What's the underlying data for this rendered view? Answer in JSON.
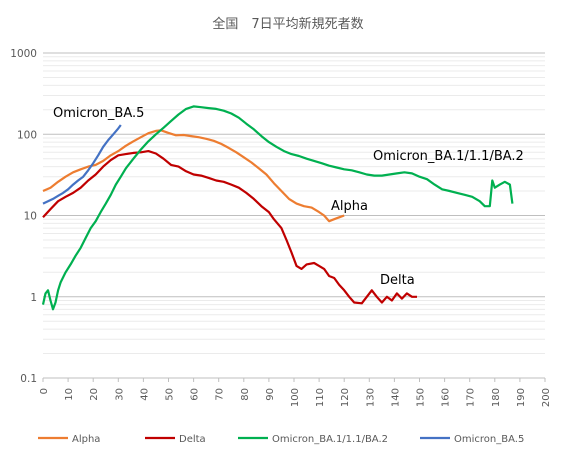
{
  "chart_data": {
    "type": "line",
    "title": "全国　7日平均新規死者数",
    "yscale": "log",
    "ylim": [
      0.1,
      1000
    ],
    "xlim": [
      0,
      200
    ],
    "xticks": [
      "0",
      "10",
      "20",
      "30",
      "40",
      "50",
      "60",
      "70",
      "80",
      "90",
      "100",
      "110",
      "120",
      "130",
      "140",
      "150",
      "160",
      "170",
      "180",
      "190",
      "200"
    ],
    "yticks": [
      "0.1",
      "1",
      "10",
      "100",
      "1000"
    ],
    "grid": true,
    "legend_position": "bottom",
    "series": [
      {
        "name": "Alpha",
        "color": "#ED7D31",
        "label": "Alpha",
        "points": [
          [
            0,
            20
          ],
          [
            3,
            22
          ],
          [
            6,
            26
          ],
          [
            9,
            30
          ],
          [
            12,
            34
          ],
          [
            15,
            37
          ],
          [
            18,
            40
          ],
          [
            21,
            42
          ],
          [
            24,
            47
          ],
          [
            27,
            55
          ],
          [
            30,
            62
          ],
          [
            33,
            72
          ],
          [
            36,
            82
          ],
          [
            39,
            92
          ],
          [
            42,
            103
          ],
          [
            45,
            110
          ],
          [
            47,
            112
          ],
          [
            50,
            104
          ],
          [
            53,
            97
          ],
          [
            56,
            98
          ],
          [
            59,
            95
          ],
          [
            62,
            92
          ],
          [
            65,
            88
          ],
          [
            68,
            83
          ],
          [
            71,
            76
          ],
          [
            74,
            68
          ],
          [
            77,
            60
          ],
          [
            80,
            52
          ],
          [
            83,
            45
          ],
          [
            86,
            38
          ],
          [
            89,
            32
          ],
          [
            92,
            25
          ],
          [
            95,
            20
          ],
          [
            98,
            16
          ],
          [
            101,
            14
          ],
          [
            104,
            13
          ],
          [
            107,
            12.5
          ],
          [
            110,
            11
          ],
          [
            112,
            10
          ],
          [
            114,
            8.5
          ],
          [
            116,
            9
          ],
          [
            118,
            9.5
          ],
          [
            120,
            10
          ]
        ]
      },
      {
        "name": "Delta",
        "color": "#C00000",
        "label": "Delta",
        "points": [
          [
            0,
            9.5
          ],
          [
            3,
            12
          ],
          [
            6,
            15
          ],
          [
            9,
            17
          ],
          [
            12,
            19
          ],
          [
            15,
            22
          ],
          [
            18,
            27
          ],
          [
            21,
            32
          ],
          [
            24,
            40
          ],
          [
            27,
            48
          ],
          [
            30,
            55
          ],
          [
            33,
            57
          ],
          [
            36,
            59
          ],
          [
            39,
            60
          ],
          [
            42,
            62
          ],
          [
            45,
            58
          ],
          [
            48,
            50
          ],
          [
            51,
            42
          ],
          [
            54,
            40
          ],
          [
            57,
            35
          ],
          [
            60,
            32
          ],
          [
            63,
            31
          ],
          [
            66,
            29
          ],
          [
            69,
            27
          ],
          [
            72,
            26
          ],
          [
            75,
            24
          ],
          [
            78,
            22
          ],
          [
            81,
            19
          ],
          [
            84,
            16
          ],
          [
            87,
            13
          ],
          [
            90,
            11
          ],
          [
            92,
            9
          ],
          [
            95,
            7
          ],
          [
            97,
            5
          ],
          [
            99,
            3.5
          ],
          [
            101,
            2.4
          ],
          [
            103,
            2.2
          ],
          [
            105,
            2.5
          ],
          [
            108,
            2.6
          ],
          [
            110,
            2.4
          ],
          [
            112,
            2.2
          ],
          [
            114,
            1.8
          ],
          [
            116,
            1.7
          ],
          [
            118,
            1.4
          ],
          [
            120,
            1.2
          ],
          [
            122,
            1.0
          ],
          [
            124,
            0.85
          ],
          [
            127,
            0.83
          ],
          [
            129,
            1.0
          ],
          [
            131,
            1.2
          ],
          [
            133,
            1.0
          ],
          [
            135,
            0.85
          ],
          [
            137,
            1.0
          ],
          [
            139,
            0.9
          ],
          [
            141,
            1.1
          ],
          [
            143,
            0.95
          ],
          [
            145,
            1.1
          ],
          [
            147,
            1.0
          ],
          [
            149,
            1.0
          ]
        ]
      },
      {
        "name": "Omicron_BA.1/1.1/BA.2",
        "color": "#00B050",
        "label": "Omicron_BA.1/1.1/BA.2",
        "points": [
          [
            0,
            0.8
          ],
          [
            1,
            1.1
          ],
          [
            2,
            1.2
          ],
          [
            3,
            0.9
          ],
          [
            4,
            0.7
          ],
          [
            5,
            0.85
          ],
          [
            6,
            1.2
          ],
          [
            7,
            1.5
          ],
          [
            9,
            2
          ],
          [
            11,
            2.5
          ],
          [
            13,
            3.2
          ],
          [
            15,
            4
          ],
          [
            17,
            5.3
          ],
          [
            19,
            7
          ],
          [
            21,
            8.5
          ],
          [
            23,
            11
          ],
          [
            25,
            14
          ],
          [
            27,
            18
          ],
          [
            29,
            24
          ],
          [
            31,
            30
          ],
          [
            33,
            38
          ],
          [
            36,
            50
          ],
          [
            39,
            65
          ],
          [
            42,
            82
          ],
          [
            45,
            100
          ],
          [
            48,
            120
          ],
          [
            51,
            145
          ],
          [
            54,
            175
          ],
          [
            57,
            205
          ],
          [
            60,
            220
          ],
          [
            63,
            215
          ],
          [
            66,
            210
          ],
          [
            69,
            205
          ],
          [
            72,
            195
          ],
          [
            75,
            180
          ],
          [
            78,
            160
          ],
          [
            81,
            135
          ],
          [
            84,
            115
          ],
          [
            87,
            95
          ],
          [
            90,
            80
          ],
          [
            93,
            70
          ],
          [
            96,
            62
          ],
          [
            99,
            57
          ],
          [
            102,
            54
          ],
          [
            105,
            50
          ],
          [
            108,
            47
          ],
          [
            111,
            44
          ],
          [
            114,
            41
          ],
          [
            117,
            39
          ],
          [
            120,
            37
          ],
          [
            123,
            36
          ],
          [
            126,
            34
          ],
          [
            129,
            32
          ],
          [
            132,
            31
          ],
          [
            135,
            31
          ],
          [
            138,
            32
          ],
          [
            141,
            33
          ],
          [
            144,
            34
          ],
          [
            147,
            33
          ],
          [
            150,
            30
          ],
          [
            153,
            28
          ],
          [
            156,
            24
          ],
          [
            159,
            21
          ],
          [
            162,
            20
          ],
          [
            165,
            19
          ],
          [
            168,
            18
          ],
          [
            171,
            17
          ],
          [
            174,
            15
          ],
          [
            176,
            13
          ],
          [
            178,
            13
          ],
          [
            179,
            27
          ],
          [
            180,
            22
          ],
          [
            182,
            24
          ],
          [
            184,
            26
          ],
          [
            186,
            24
          ],
          [
            187,
            14
          ]
        ]
      },
      {
        "name": "Omicron_BA.5",
        "color": "#4472C4",
        "label": "Omicron_BA.5",
        "points": [
          [
            0,
            14
          ],
          [
            2,
            15
          ],
          [
            4,
            16
          ],
          [
            6,
            17.5
          ],
          [
            8,
            19
          ],
          [
            10,
            21
          ],
          [
            12,
            24
          ],
          [
            14,
            27
          ],
          [
            16,
            30
          ],
          [
            18,
            36
          ],
          [
            20,
            44
          ],
          [
            22,
            55
          ],
          [
            24,
            70
          ],
          [
            26,
            85
          ],
          [
            28,
            100
          ],
          [
            30,
            118
          ],
          [
            31,
            130
          ]
        ]
      }
    ]
  }
}
